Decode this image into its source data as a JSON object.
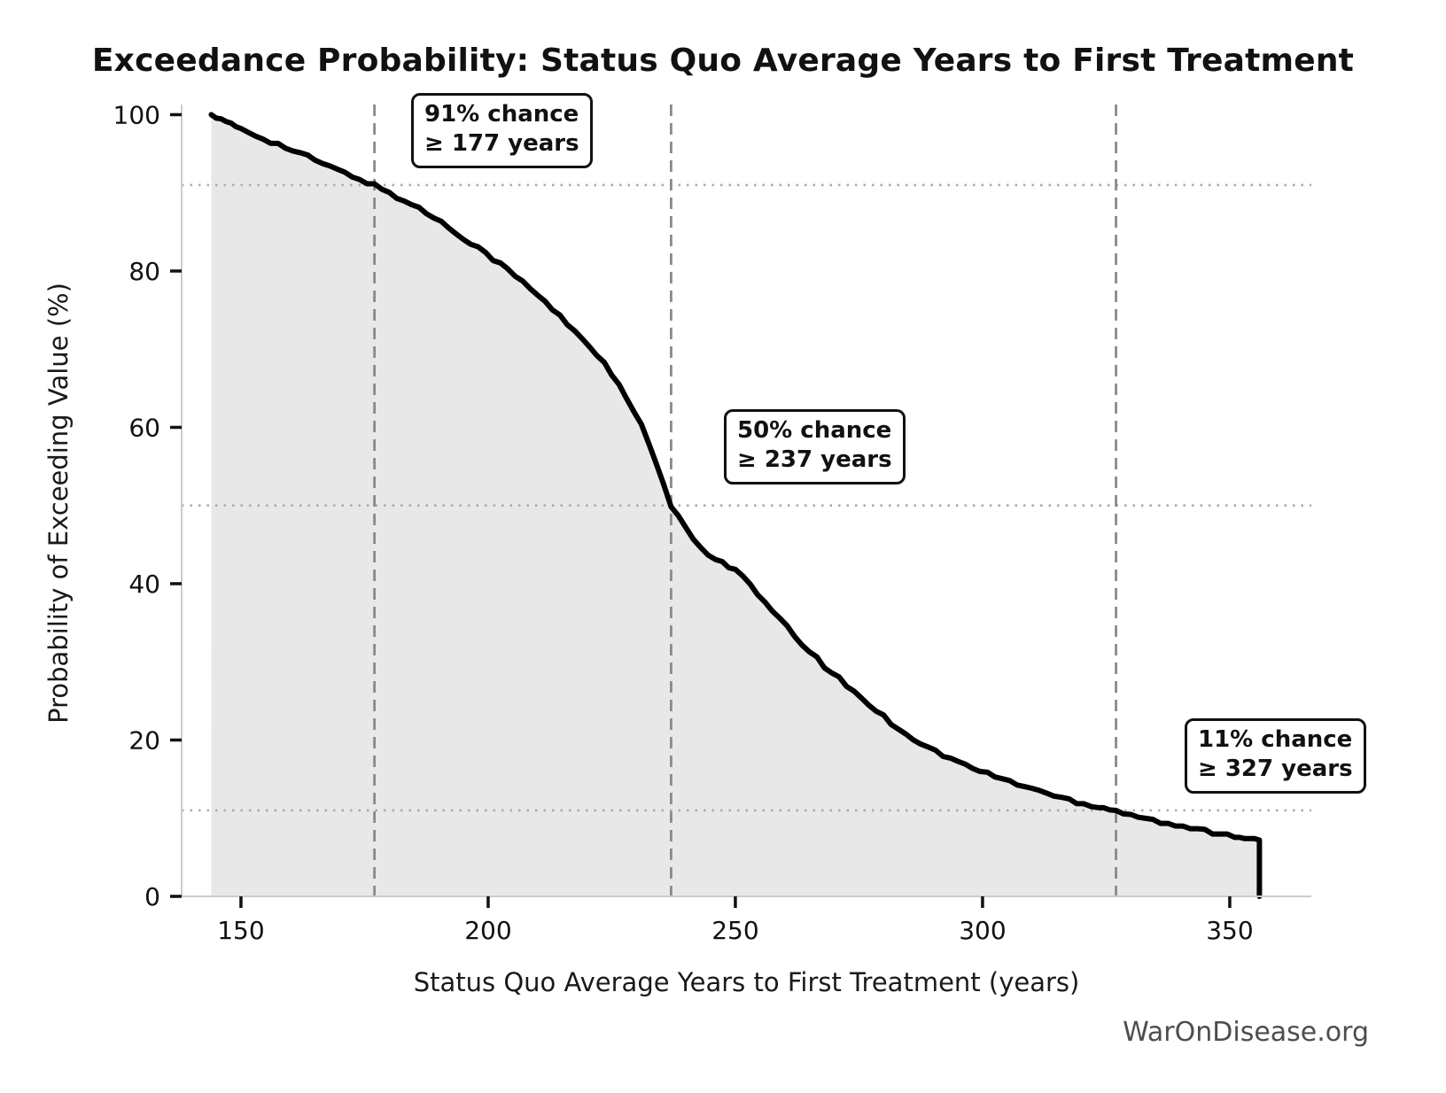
{
  "title": "Exceedance Probability: Status Quo Average Years to First Treatment",
  "watermark": "WarOnDisease.org",
  "chart_data": {
    "type": "line",
    "subtype": "exceedance-probability-curve",
    "title": "Exceedance Probability: Status Quo Average Years to First Treatment",
    "xlabel": "Status Quo Average Years to First Treatment (years)",
    "ylabel": "Probability of Exceeding Value (%)",
    "xlim": [
      138,
      366.5
    ],
    "ylim": [
      0,
      101.3
    ],
    "xticks": [
      150,
      200,
      250,
      300,
      350
    ],
    "yticks": [
      0,
      20,
      40,
      60,
      80,
      100
    ],
    "grid": "off",
    "legend": "none",
    "fill_under_curve": true,
    "series": [
      {
        "name": "exceedance-curve",
        "points": [
          [
            144,
            100
          ],
          [
            146,
            99.3
          ],
          [
            148,
            98.7
          ],
          [
            150,
            98.2
          ],
          [
            153,
            97.4
          ],
          [
            156,
            96.6
          ],
          [
            159,
            95.8
          ],
          [
            162,
            95.0
          ],
          [
            165,
            94.2
          ],
          [
            168,
            93.3
          ],
          [
            171,
            92.5
          ],
          [
            174,
            91.8
          ],
          [
            177,
            91.0
          ],
          [
            180,
            90.0
          ],
          [
            183,
            89.0
          ],
          [
            186,
            88.0
          ],
          [
            189,
            86.9
          ],
          [
            192,
            85.6
          ],
          [
            195,
            84.3
          ],
          [
            198,
            83.0
          ],
          [
            201,
            81.6
          ],
          [
            204,
            80.1
          ],
          [
            207,
            78.6
          ],
          [
            210,
            76.9
          ],
          [
            213,
            75.1
          ],
          [
            216,
            73.3
          ],
          [
            219,
            71.4
          ],
          [
            222,
            69.4
          ],
          [
            225,
            66.8
          ],
          [
            228,
            63.7
          ],
          [
            231,
            60.2
          ],
          [
            234,
            55.3
          ],
          [
            237,
            50.0
          ],
          [
            240,
            46.9
          ],
          [
            243,
            44.6
          ],
          [
            246,
            43.2
          ],
          [
            250,
            41.8
          ],
          [
            253,
            39.8
          ],
          [
            256,
            37.5
          ],
          [
            259,
            35.4
          ],
          [
            262,
            33.3
          ],
          [
            265,
            31.3
          ],
          [
            268,
            29.5
          ],
          [
            271,
            27.8
          ],
          [
            274,
            26.2
          ],
          [
            277,
            24.6
          ],
          [
            280,
            23.0
          ],
          [
            283,
            21.5
          ],
          [
            286,
            20.2
          ],
          [
            289,
            19.0
          ],
          [
            292,
            18.1
          ],
          [
            295,
            17.2
          ],
          [
            298,
            16.4
          ],
          [
            301,
            15.7
          ],
          [
            304,
            15.0
          ],
          [
            307,
            14.4
          ],
          [
            310,
            13.8
          ],
          [
            313,
            13.2
          ],
          [
            316,
            12.6
          ],
          [
            319,
            12.1
          ],
          [
            322,
            11.7
          ],
          [
            327,
            11.0
          ],
          [
            330,
            10.5
          ],
          [
            333,
            10.0
          ],
          [
            336,
            9.5
          ],
          [
            339,
            9.1
          ],
          [
            342,
            8.7
          ],
          [
            345,
            8.4
          ],
          [
            348,
            8.1
          ],
          [
            351,
            7.8
          ],
          [
            353,
            7.6
          ],
          [
            355,
            7.4
          ],
          [
            356,
            7.2
          ],
          [
            356,
            0
          ]
        ]
      }
    ],
    "reference_lines": {
      "vertical_dashed_x": [
        177,
        237,
        327
      ],
      "horizontal_dotted_y": [
        91,
        50,
        11
      ]
    },
    "annotations": [
      {
        "line1": "91% chance",
        "line2": "≥ 177 years",
        "x_years": 177,
        "probability_pct": 91
      },
      {
        "line1": "50% chance",
        "line2": "≥ 237 years",
        "x_years": 237,
        "probability_pct": 50
      },
      {
        "line1": "11% chance",
        "line2": "≥ 327 years",
        "x_years": 327,
        "probability_pct": 11
      }
    ],
    "colors": {
      "curve": "#000000",
      "fill": "#e8e8e8",
      "dashed_line": "#8a8a8a",
      "dotted_line": "#ababab",
      "spine": "#cccccc",
      "tick": "#111111",
      "tick_label": "#111111",
      "annotation_border": "#111111",
      "watermark": "#4d4d4d"
    }
  }
}
